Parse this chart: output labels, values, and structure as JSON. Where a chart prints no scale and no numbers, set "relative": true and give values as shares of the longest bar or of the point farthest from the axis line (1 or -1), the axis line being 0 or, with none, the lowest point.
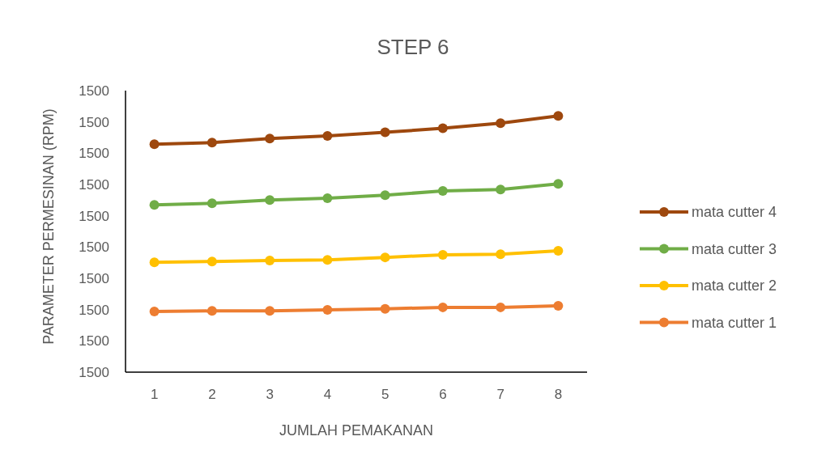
{
  "chart_data": {
    "type": "line",
    "title": "STEP 6",
    "xlabel": "JUMLAH PEMAKANAN",
    "ylabel": "PARAMETER PERMESINAN (RPM)",
    "categories": [
      "1",
      "2",
      "3",
      "4",
      "5",
      "6",
      "7",
      "8"
    ],
    "relative": true,
    "annotations": [
      "1500",
      "1500",
      "1500",
      "1500",
      "1500",
      "1500",
      "1500",
      "1500",
      "1500",
      "1500"
    ],
    "grid": false,
    "legend": "right",
    "marker": "circle",
    "line_style": "solid",
    "series": [
      {
        "name": "mata cutter 4",
        "color": "#9e480e",
        "values": [
          0.89,
          0.896,
          0.912,
          0.922,
          0.936,
          0.952,
          0.972,
          1
        ]
      },
      {
        "name": "mata cutter 3",
        "color": "#70ad47",
        "values": [
          0.653,
          0.659,
          0.672,
          0.679,
          0.691,
          0.707,
          0.713,
          0.735
        ]
      },
      {
        "name": "mata cutter 2",
        "color": "#ffc000",
        "values": [
          0.429,
          0.432,
          0.436,
          0.438,
          0.448,
          0.458,
          0.46,
          0.474
        ]
      },
      {
        "name": "mata cutter 1",
        "color": "#ed7d31",
        "values": [
          0.237,
          0.239,
          0.239,
          0.243,
          0.247,
          0.253,
          0.253,
          0.259
        ]
      }
    ]
  }
}
